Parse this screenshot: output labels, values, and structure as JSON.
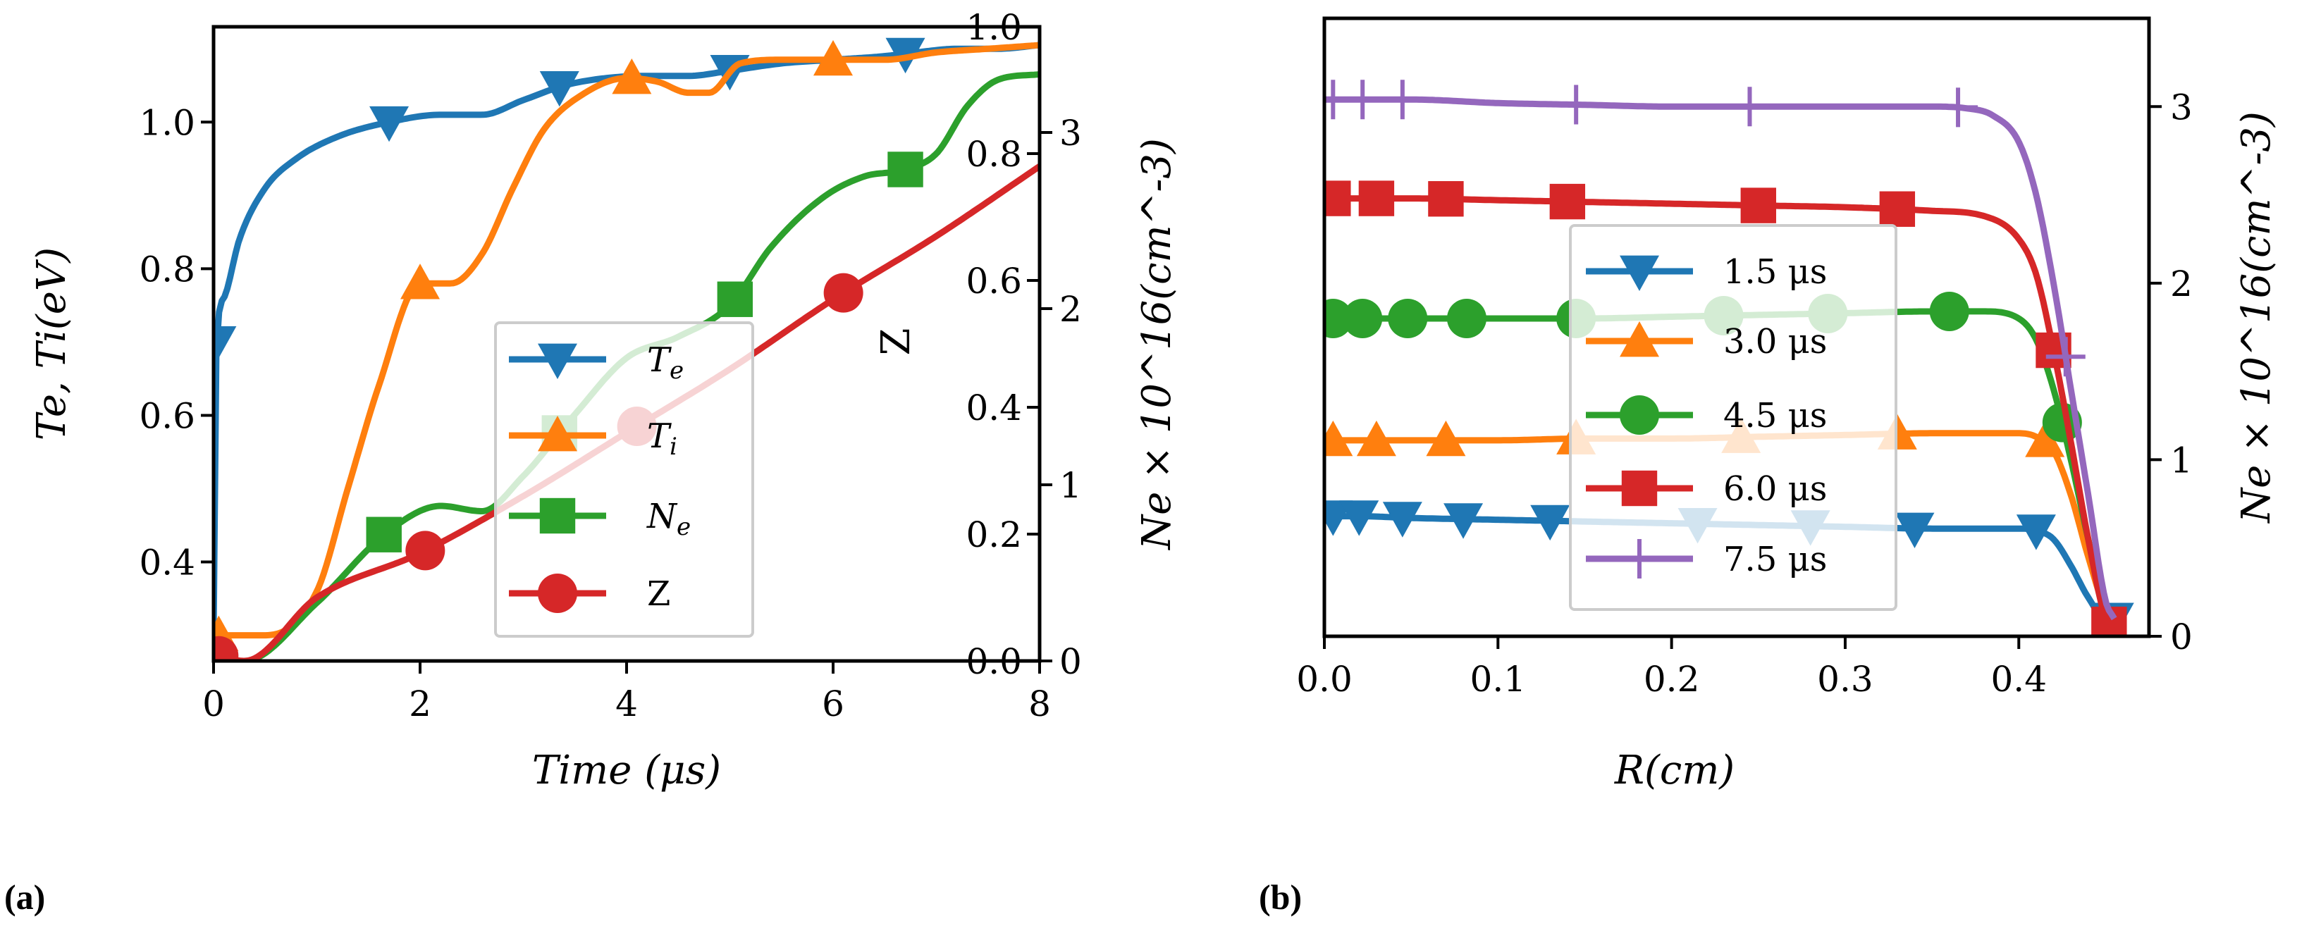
{
  "panels": [
    {
      "label": "(a)",
      "letter": "a"
    },
    {
      "label": "(b)",
      "letter": "b"
    }
  ],
  "colors": {
    "blue": "#1f77b4",
    "orange": "#ff7f0e",
    "green": "#2ca02c",
    "red": "#d62728",
    "purple": "#9467bd"
  },
  "chart_data": [
    {
      "type": "line",
      "panel": "a",
      "title": "",
      "xlabel": "Time (μs)",
      "ylabel_left": "Te, Ti(eV)",
      "ylabel_right_inner": "Z",
      "ylabel_right_outer": "Ne × 10^16(cm^-3)",
      "xlim": [
        0,
        8
      ],
      "ylim_left": [
        0.265,
        1.13
      ],
      "ylim_inner": [
        0,
        1.0
      ],
      "ylim_outer": [
        0,
        3.6
      ],
      "xticks": [
        "0",
        "2",
        "4",
        "6",
        "8"
      ],
      "yticks_left": [
        "0.4",
        "0.6",
        "0.8",
        "1.0"
      ],
      "yticks_inner": [
        "0.0",
        "0.2",
        "0.4",
        "0.6",
        "0.8",
        "1.0"
      ],
      "yticks_outer": [
        "0",
        "1",
        "2",
        "3"
      ],
      "legend": [
        "Te",
        "Ti",
        "Ne",
        "Z"
      ],
      "legend_position": "center-right",
      "series": [
        {
          "name": "Te",
          "axis": "left",
          "color": "blue",
          "marker": "triangle-down",
          "x": [
            0,
            0.03,
            0.1,
            0.25,
            0.5,
            0.8,
            1.2,
            1.7,
            2.2,
            2.6,
            3.0,
            3.4,
            3.8,
            4.2,
            4.6,
            5.0,
            5.5,
            6.0,
            6.5,
            6.8,
            7.2,
            7.6,
            8.0
          ],
          "y": [
            0.3,
            0.7,
            0.76,
            0.84,
            0.91,
            0.95,
            0.98,
            1.0,
            1.01,
            1.01,
            1.03,
            1.05,
            1.06,
            1.063,
            1.063,
            1.07,
            1.08,
            1.085,
            1.09,
            1.095,
            1.1,
            1.1,
            1.105
          ],
          "markers_x": [
            0.03,
            1.7,
            3.35,
            5.0,
            6.7
          ]
        },
        {
          "name": "Ti",
          "axis": "left",
          "color": "orange",
          "marker": "triangle-up",
          "x": [
            0,
            0.5,
            1.0,
            1.3,
            1.6,
            2.0,
            2.3,
            2.6,
            2.9,
            3.2,
            3.6,
            4.0,
            4.3,
            4.6,
            4.8,
            5.1,
            5.5,
            6.0,
            6.5,
            7.0,
            7.5,
            8.0
          ],
          "y": [
            0.3,
            0.3,
            0.36,
            0.5,
            0.64,
            0.78,
            0.78,
            0.82,
            0.91,
            0.99,
            1.04,
            1.06,
            1.055,
            1.04,
            1.04,
            1.08,
            1.085,
            1.085,
            1.085,
            1.095,
            1.1,
            1.105
          ],
          "markers_x": [
            0.05,
            2.0,
            4.05,
            6.0
          ]
        },
        {
          "name": "Ne",
          "axis": "outer",
          "color": "green",
          "marker": "square",
          "x": [
            0,
            0.3,
            1.0,
            1.7,
            2.2,
            2.6,
            3.0,
            3.5,
            4.0,
            4.5,
            5.0,
            5.4,
            5.9,
            6.3,
            6.7,
            7.0,
            7.3,
            7.6,
            8.0
          ],
          "y": [
            0.0,
            0.0,
            0.33,
            0.74,
            0.88,
            0.85,
            1.05,
            1.4,
            1.72,
            1.84,
            2.02,
            2.35,
            2.63,
            2.75,
            2.79,
            2.88,
            3.15,
            3.3,
            3.33
          ],
          "markers_x": [
            1.65,
            3.35,
            5.05,
            6.7
          ]
        },
        {
          "name": "Z",
          "axis": "inner",
          "color": "red",
          "marker": "circle",
          "x": [
            0,
            0.3,
            1.0,
            2.0,
            3.0,
            4.0,
            5.0,
            6.0,
            7.0,
            8.0
          ],
          "y": [
            0.01,
            0.0,
            0.1,
            0.17,
            0.26,
            0.36,
            0.46,
            0.57,
            0.67,
            0.78
          ],
          "markers_x": [
            0.05,
            2.05,
            4.1,
            6.1
          ]
        }
      ]
    },
    {
      "type": "line",
      "panel": "b",
      "title": "",
      "xlabel": "R(cm)",
      "ylabel_right": "Ne × 10^16(cm^-3)",
      "xlim": [
        0,
        0.475
      ],
      "ylim": [
        0,
        3.5
      ],
      "xticks": [
        "0.0",
        "0.1",
        "0.2",
        "0.3",
        "0.4"
      ],
      "yticks": [
        "0",
        "1",
        "2",
        "3"
      ],
      "legend": [
        "1.5 μs",
        "3.0 μs",
        "4.5 μs",
        "6.0 μs",
        "7.5 μs"
      ],
      "legend_position": "center",
      "series": [
        {
          "name": "1.5 μs",
          "color": "blue",
          "marker": "triangle-down",
          "x": [
            0,
            0.02,
            0.05,
            0.1,
            0.15,
            0.2,
            0.25,
            0.3,
            0.35,
            0.4,
            0.41,
            0.42,
            0.43,
            0.44,
            0.45,
            0.455
          ],
          "y": [
            0.68,
            0.68,
            0.67,
            0.66,
            0.65,
            0.64,
            0.63,
            0.62,
            0.61,
            0.61,
            0.6,
            0.55,
            0.4,
            0.22,
            0.1,
            0.1
          ],
          "markers_x": [
            0.005,
            0.02,
            0.045,
            0.08,
            0.13,
            0.215,
            0.28,
            0.34,
            0.41,
            0.455
          ]
        },
        {
          "name": "3.0 μs",
          "color": "orange",
          "marker": "triangle-up",
          "x": [
            0,
            0.05,
            0.1,
            0.15,
            0.2,
            0.25,
            0.3,
            0.35,
            0.4,
            0.41,
            0.42,
            0.43,
            0.44,
            0.45,
            0.455
          ],
          "y": [
            1.11,
            1.11,
            1.11,
            1.12,
            1.12,
            1.13,
            1.14,
            1.15,
            1.15,
            1.13,
            1.05,
            0.8,
            0.45,
            0.15,
            0.1
          ],
          "markers_x": [
            0.005,
            0.03,
            0.07,
            0.145,
            0.24,
            0.33,
            0.415
          ]
        },
        {
          "name": "4.5 μs",
          "color": "green",
          "marker": "circle",
          "x": [
            0,
            0.05,
            0.1,
            0.15,
            0.2,
            0.25,
            0.3,
            0.35,
            0.38,
            0.4,
            0.41,
            0.42,
            0.43,
            0.44,
            0.45,
            0.455
          ],
          "y": [
            1.8,
            1.8,
            1.8,
            1.8,
            1.81,
            1.82,
            1.83,
            1.84,
            1.84,
            1.8,
            1.68,
            1.4,
            1.0,
            0.55,
            0.15,
            0.08
          ],
          "markers_x": [
            0.005,
            0.022,
            0.048,
            0.082,
            0.145,
            0.23,
            0.29,
            0.36,
            0.425
          ]
        },
        {
          "name": "6.0 μs",
          "color": "red",
          "marker": "square",
          "x": [
            0,
            0.05,
            0.1,
            0.15,
            0.2,
            0.25,
            0.3,
            0.35,
            0.38,
            0.4,
            0.41,
            0.42,
            0.43,
            0.44,
            0.45,
            0.455
          ],
          "y": [
            2.48,
            2.48,
            2.47,
            2.46,
            2.45,
            2.44,
            2.43,
            2.41,
            2.38,
            2.25,
            2.05,
            1.62,
            1.1,
            0.55,
            0.1,
            0.05
          ],
          "markers_x": [
            0.005,
            0.03,
            0.07,
            0.14,
            0.25,
            0.33,
            0.42,
            0.452
          ]
        },
        {
          "name": "7.5 μs",
          "color": "purple",
          "marker": "plus",
          "x": [
            0,
            0.05,
            0.1,
            0.15,
            0.2,
            0.25,
            0.3,
            0.35,
            0.37,
            0.385,
            0.4,
            0.41,
            0.42,
            0.43,
            0.44,
            0.45,
            0.455
          ],
          "y": [
            3.04,
            3.04,
            3.02,
            3.01,
            3.0,
            3.0,
            3.0,
            3.0,
            2.99,
            2.95,
            2.8,
            2.5,
            2.0,
            1.4,
            0.8,
            0.2,
            0.1
          ],
          "markers_x": [
            0.005,
            0.022,
            0.045,
            0.145,
            0.245,
            0.365,
            0.427
          ]
        }
      ]
    }
  ]
}
